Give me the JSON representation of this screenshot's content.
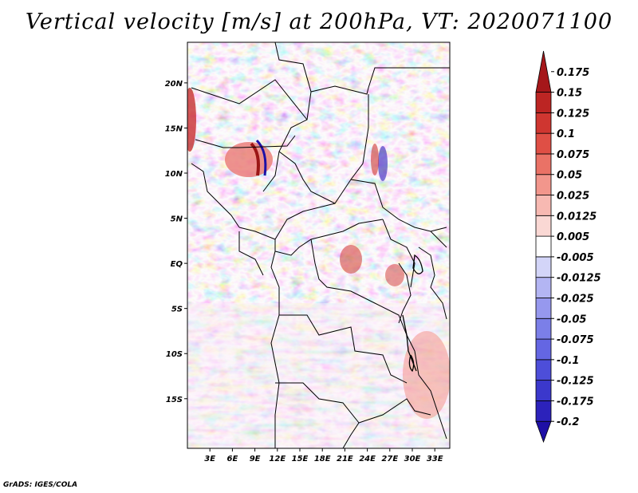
{
  "chart_data": {
    "type": "heatmap",
    "title": "Vertical velocity [m/s] at 200hPa, VT: 2020071100",
    "variable": "Vertical velocity",
    "units": "m/s",
    "level": "200hPa",
    "valid_time": "2020071100",
    "x_axis": {
      "ticks": [
        3,
        6,
        9,
        12,
        15,
        18,
        21,
        24,
        27,
        30,
        33
      ],
      "tick_labels": [
        "3E",
        "6E",
        "9E",
        "12E",
        "15E",
        "18E",
        "21E",
        "24E",
        "27E",
        "30E",
        "33E"
      ],
      "range": [
        0,
        35
      ]
    },
    "y_axis": {
      "ticks": [
        20,
        15,
        10,
        5,
        0,
        -5,
        -10,
        -15
      ],
      "tick_labels": [
        "20N",
        "15N",
        "10N",
        "5N",
        "EQ",
        "5S",
        "10S",
        "15S"
      ],
      "range": [
        -20.5,
        24.5
      ]
    },
    "colorbar": {
      "levels": [
        "-0.2",
        "-0.175",
        "-0.125",
        "-0.1",
        "-0.075",
        "-0.05",
        "-0.025",
        "-0.0125",
        "-0.005",
        "0.005",
        "0.0125",
        "0.025",
        "0.05",
        "0.075",
        "0.1",
        "0.125",
        "0.15",
        "0.175"
      ],
      "colors": [
        "#1e10a6",
        "#2c22bb",
        "#3b38cc",
        "#4d4ed9",
        "#6466e3",
        "#7b7fe8",
        "#9698ee",
        "#b3b5f3",
        "#d3d5f8",
        "#ffffff",
        "#fad8d4",
        "#f7b9b2",
        "#f2968c",
        "#ea7266",
        "#df4f45",
        "#cf3630",
        "#bc2523",
        "#a5171a"
      ]
    }
  },
  "footer": {
    "credit": "GrADS: IGES/COLA"
  }
}
